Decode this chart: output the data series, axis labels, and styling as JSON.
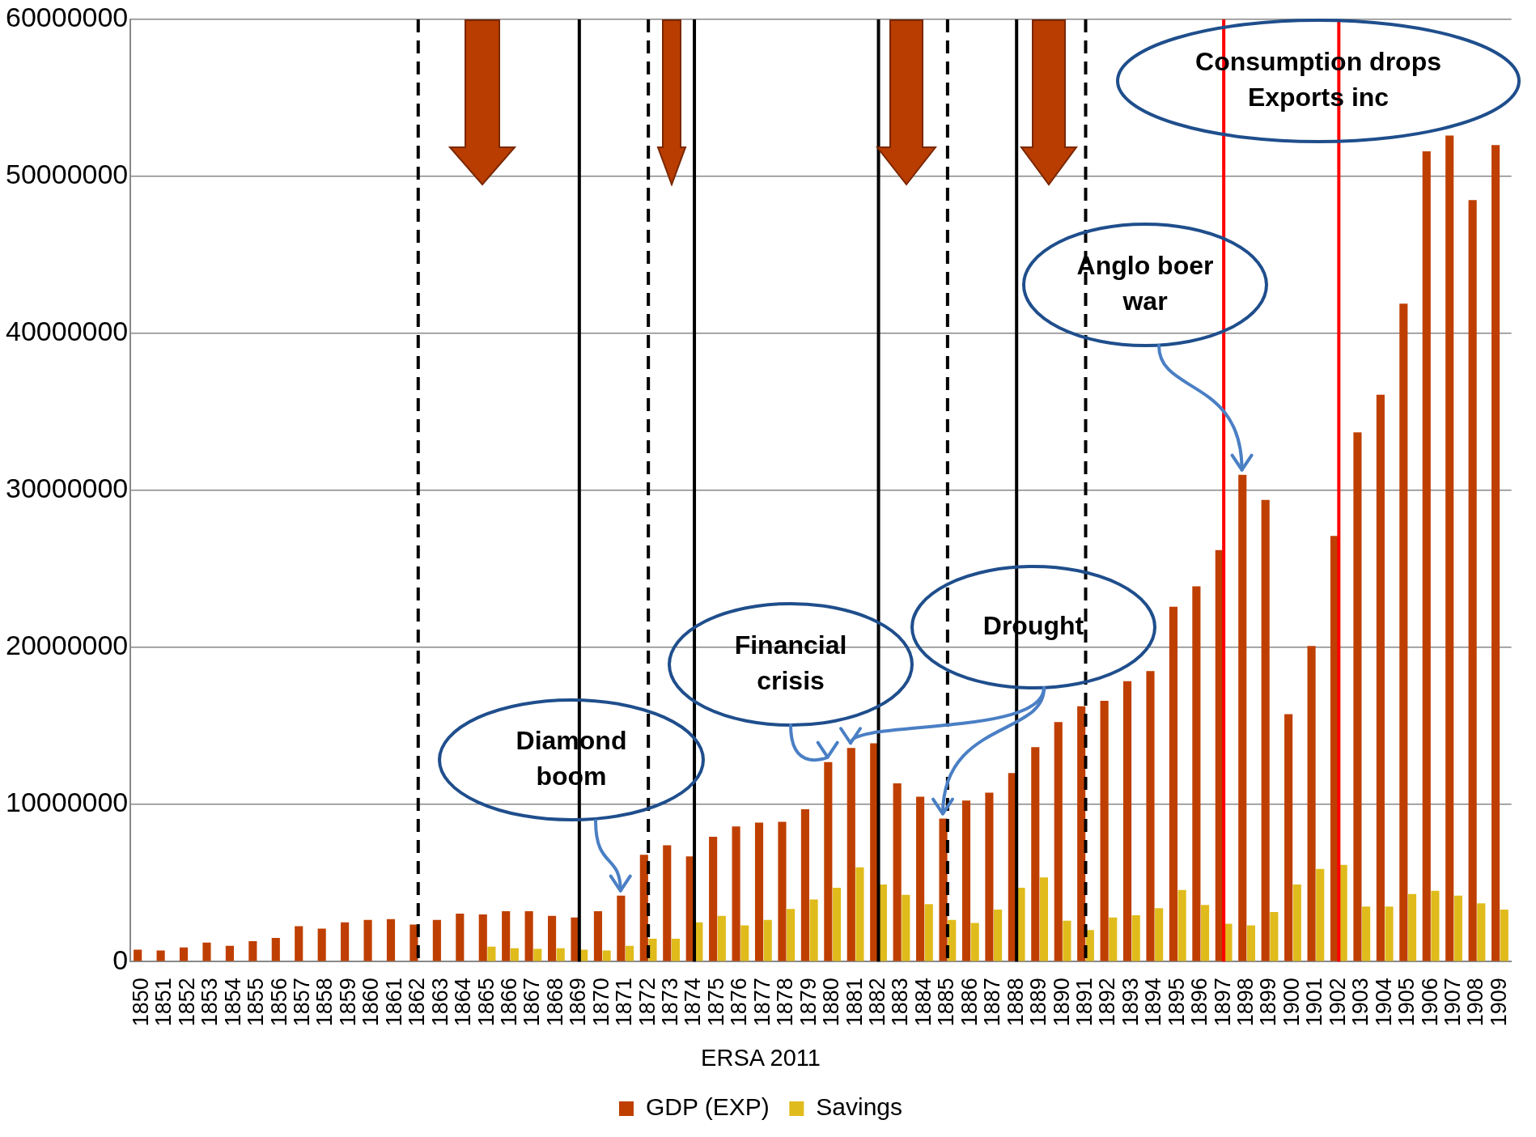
{
  "chart_data": {
    "type": "bar",
    "categories": [
      "1850",
      "1851",
      "1852",
      "1853",
      "1854",
      "1855",
      "1856",
      "1857",
      "1858",
      "1859",
      "1860",
      "1861",
      "1862",
      "1863",
      "1864",
      "1865",
      "1866",
      "1867",
      "1868",
      "1869",
      "1870",
      "1871",
      "1872",
      "1873",
      "1874",
      "1875",
      "1876",
      "1877",
      "1878",
      "1879",
      "1880",
      "1881",
      "1882",
      "1883",
      "1884",
      "1885",
      "1886",
      "1887",
      "1888",
      "1889",
      "1890",
      "1891",
      "1892",
      "1893",
      "1894",
      "1895",
      "1896",
      "1897",
      "1898",
      "1899",
      "1900",
      "1901",
      "1902",
      "1903",
      "1904",
      "1905",
      "1906",
      "1907",
      "1908",
      "1909"
    ],
    "series": [
      {
        "name": "GDP (EXP)",
        "color": "#bf3f00",
        "values": [
          750000,
          700000,
          900000,
          1200000,
          1000000,
          1300000,
          1500000,
          2250000,
          2100000,
          2500000,
          2650000,
          2700000,
          2350000,
          2650000,
          3050000,
          3000000,
          3200000,
          3200000,
          2900000,
          2800000,
          3200000,
          4200000,
          6800000,
          7400000,
          6700000,
          7950000,
          8600000,
          8850000,
          8900000,
          9700000,
          12700000,
          13600000,
          13900000,
          11350000,
          10500000,
          9100000,
          10250000,
          10750000,
          12000000,
          13650000,
          15250000,
          16250000,
          16600000,
          17850000,
          18500000,
          22600000,
          23900000,
          26200000,
          31000000,
          29400000,
          15750000,
          20100000,
          27100000,
          33700000,
          36100000,
          41900000,
          51600000,
          52600000,
          48500000,
          52000000
        ]
      },
      {
        "name": "Savings",
        "color": "#e0bb1c",
        "values": [
          null,
          null,
          null,
          null,
          null,
          null,
          null,
          null,
          null,
          null,
          null,
          null,
          null,
          null,
          null,
          950000,
          850000,
          800000,
          850000,
          750000,
          700000,
          1000000,
          1450000,
          1450000,
          2500000,
          2900000,
          2300000,
          2650000,
          3350000,
          3950000,
          4700000,
          6000000,
          4900000,
          4250000,
          3650000,
          2650000,
          2450000,
          3300000,
          4700000,
          5350000,
          2600000,
          2000000,
          2800000,
          2950000,
          3400000,
          4550000,
          3600000,
          2400000,
          2300000,
          3150000,
          4900000,
          5900000,
          6150000,
          3500000,
          3500000,
          4300000,
          4500000,
          4200000,
          3700000,
          3300000
        ]
      }
    ],
    "ylim": [
      0,
      60000000
    ],
    "yticks": [
      0,
      10000000,
      20000000,
      30000000,
      40000000,
      50000000,
      60000000
    ],
    "grid": "y",
    "legend": "bottom",
    "ref_lines": [
      {
        "axis": "x",
        "value": "1862",
        "line_style": "dashed",
        "color": "#000000"
      },
      {
        "axis": "x",
        "value": "1869",
        "line_style": "solid",
        "color": "#000000"
      },
      {
        "axis": "x",
        "value": "1872",
        "line_style": "dashed",
        "color": "#000000"
      },
      {
        "axis": "x",
        "value": "1874",
        "line_style": "solid",
        "color": "#000000"
      },
      {
        "axis": "x",
        "value": "1882",
        "line_style": "solid",
        "color": "#000000"
      },
      {
        "axis": "x",
        "value": "1885",
        "line_style": "dashed",
        "color": "#000000"
      },
      {
        "axis": "x",
        "value": "1888",
        "line_style": "solid",
        "color": "#000000"
      },
      {
        "axis": "x",
        "value": "1891",
        "line_style": "dashed",
        "color": "#000000"
      },
      {
        "axis": "x",
        "value": "1897",
        "line_style": "solid",
        "color": "#ff0000"
      },
      {
        "axis": "x",
        "value": "1902",
        "line_style": "solid",
        "color": "#ff0000"
      }
    ],
    "annotations": [
      {
        "text": "Diamond boom",
        "x": "1871",
        "y": 4200000
      },
      {
        "text": "Financial crisis",
        "x": "1880",
        "y": 12700000
      },
      "Drought",
      {
        "text": "Anglo boer war",
        "x": "1898",
        "y": 31000000
      },
      "Consumption drops Exports inc",
      "ERSA 2011"
    ]
  }
}
